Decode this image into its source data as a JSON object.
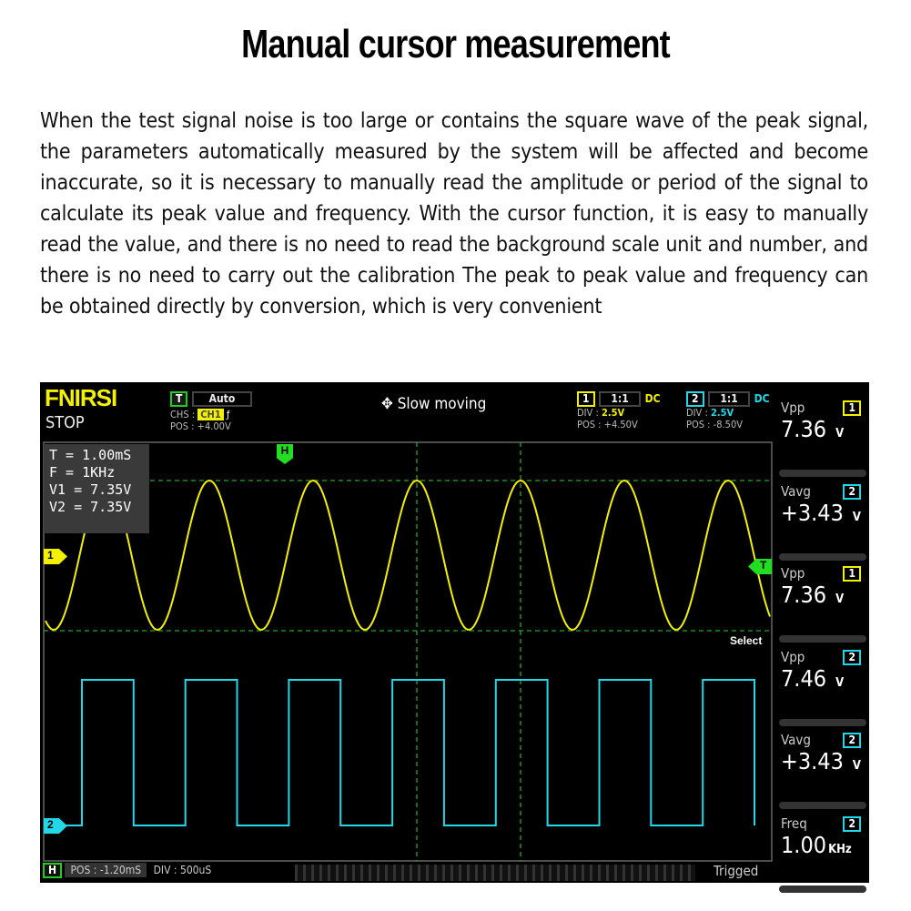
{
  "title": "Manual cursor measurement",
  "paragraph": "When the test signal noise is too large or contains the square wave of the peak signal, the parameters automatically measured by the system will be affected and become inaccurate, so it is necessary to manually read the amplitude or period of the signal to calculate its peak value and frequency. With the cursor function, it is easy to manually read the value, and there is no need to read the background scale unit and number, and there is no need to carry out the calibration The peak to peak value and frequency can be obtained directly by conversion, which is very convenient",
  "scope": {
    "brand": "FNIRSI",
    "run_state": "STOP",
    "trigger": {
      "badge": "T",
      "mode": "Auto",
      "chs_label": "CHS :",
      "chs_value": "CH1",
      "edge_icon": "rising-edge",
      "pos": "POS : +4.00V"
    },
    "mode_icon": "move-arrows",
    "mode_text": "Slow moving",
    "ch1": {
      "badge": "1",
      "probe": "1:1",
      "coupling": "DC",
      "div_label": "DIV :",
      "div": "2.5V",
      "pos": "POS : +4.50V",
      "color": "#f3f000"
    },
    "ch2": {
      "badge": "2",
      "probe": "1:1",
      "coupling": "DC",
      "div_label": "DIV :",
      "div": "2.5V",
      "pos": "POS : -8.50V",
      "color": "#20d8e8"
    },
    "cursor_info": [
      "T = 1.00mS",
      "F = 1KHz",
      "V1 = 7.35V",
      "V2 = 7.35V"
    ],
    "markers": {
      "h": "H",
      "ch1": "1",
      "ch2": "2",
      "trig": "T"
    },
    "select_label": "Select",
    "measurements": [
      {
        "label": "Vpp",
        "ch": "1",
        "value": "7.36",
        "unit": "V"
      },
      {
        "label": "Vavg",
        "ch": "2",
        "value": "+3.43",
        "unit": "V"
      },
      {
        "label": "Vpp",
        "ch": "1",
        "value": "7.36",
        "unit": "V"
      },
      {
        "label": "Vpp",
        "ch": "2",
        "value": "7.46",
        "unit": "V"
      },
      {
        "label": "Vavg",
        "ch": "2",
        "value": "+3.43",
        "unit": "V"
      },
      {
        "label": "Freq",
        "ch": "2",
        "value": "1.00",
        "unit": "KHz"
      }
    ],
    "footer": {
      "h_badge": "H",
      "pos": "POS : -1.20mS",
      "div": "DIV : 500uS",
      "status": "Trigged"
    }
  }
}
